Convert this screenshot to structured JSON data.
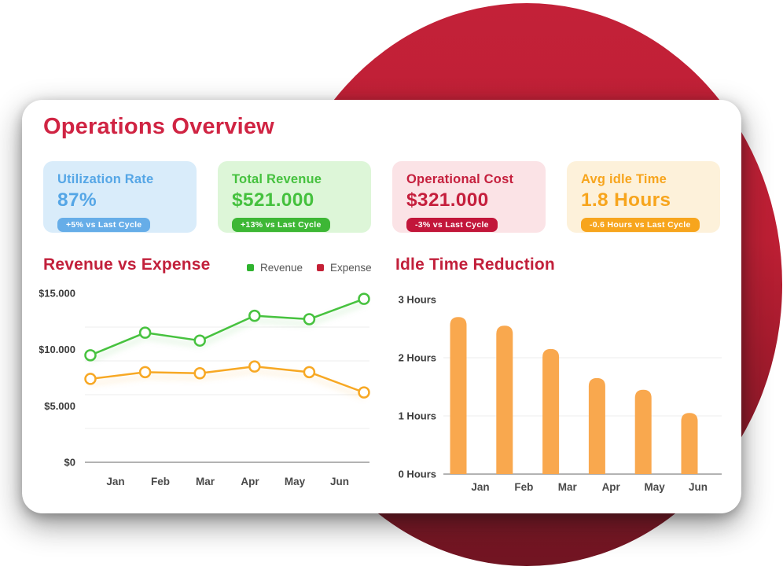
{
  "page": {
    "title": "Operations Overview"
  },
  "kpis": [
    {
      "title": "Utilization Rate",
      "value": "87%",
      "badge": "+5% vs Last Cycle",
      "bg": "#d9ecfa",
      "text_color": "#55a6e6",
      "badge_bg": "#66ade8"
    },
    {
      "title": "Total Revenue",
      "value": "$521.000",
      "badge": "+13% vs Last Cycle",
      "bg": "#ddf6d8",
      "text_color": "#45c13e",
      "badge_bg": "#3db735"
    },
    {
      "title": "Operational Cost",
      "value": "$321.000",
      "badge": "-3% vs Last Cycle",
      "bg": "#fbe3e6",
      "text_color": "#c51f3d",
      "badge_bg": "#c2163a"
    },
    {
      "title": "Avg idle Time",
      "value": "1.8 Hours",
      "badge": "-0.6 Hours vs Last Cycle",
      "bg": "#fdf1da",
      "text_color": "#f7a51d",
      "badge_bg": "#f7a51d"
    }
  ],
  "chart_data": [
    {
      "type": "line",
      "title": "Revenue vs Expense",
      "categories": [
        "Jan",
        "Feb",
        "Mar",
        "Apr",
        "May",
        "Jun"
      ],
      "series": [
        {
          "name": "Revenue",
          "color": "#47c23f",
          "legend_color": "#2eb32e",
          "values": [
            9500,
            11500,
            10800,
            13000,
            12700,
            14500
          ]
        },
        {
          "name": "Expense",
          "color": "#f7a824",
          "legend_color": "#c42036",
          "values": [
            7400,
            8000,
            7900,
            8500,
            8000,
            6200
          ]
        }
      ],
      "ylim": [
        0,
        15000
      ],
      "yticks": [
        {
          "value": 15000,
          "label": "$15.000"
        },
        {
          "value": 10000,
          "label": "$10.000"
        },
        {
          "value": 5000,
          "label": "$5.000"
        },
        {
          "value": 0,
          "label": "$0"
        }
      ],
      "grid_values": [
        3000,
        6000,
        9000,
        12000
      ],
      "legend_position": "top-right",
      "grid": true
    },
    {
      "type": "bar",
      "title": "Idle Time Reduction",
      "categories": [
        "Jan",
        "Feb",
        "Mar",
        "Apr",
        "May",
        "Jun"
      ],
      "values": [
        2.7,
        2.55,
        2.15,
        1.65,
        1.45,
        1.05
      ],
      "bar_color": "#f9a84e",
      "ylim": [
        0,
        3
      ],
      "yticks": [
        {
          "value": 3,
          "label": "3 Hours"
        },
        {
          "value": 2,
          "label": "2 Hours"
        },
        {
          "value": 1,
          "label": "1 Hours"
        },
        {
          "value": 0,
          "label": "0 Hours"
        }
      ],
      "grid_values": [
        1,
        2
      ],
      "grid": true
    }
  ],
  "colors": {
    "accent_title": "#d02443",
    "chart_title": "#c2203b",
    "circle_top": "#c32138",
    "circle_bottom": "#701522",
    "card_bg": "#ffffff",
    "axis_line": "#9a9a9a",
    "gridline": "#f1f1f1"
  }
}
